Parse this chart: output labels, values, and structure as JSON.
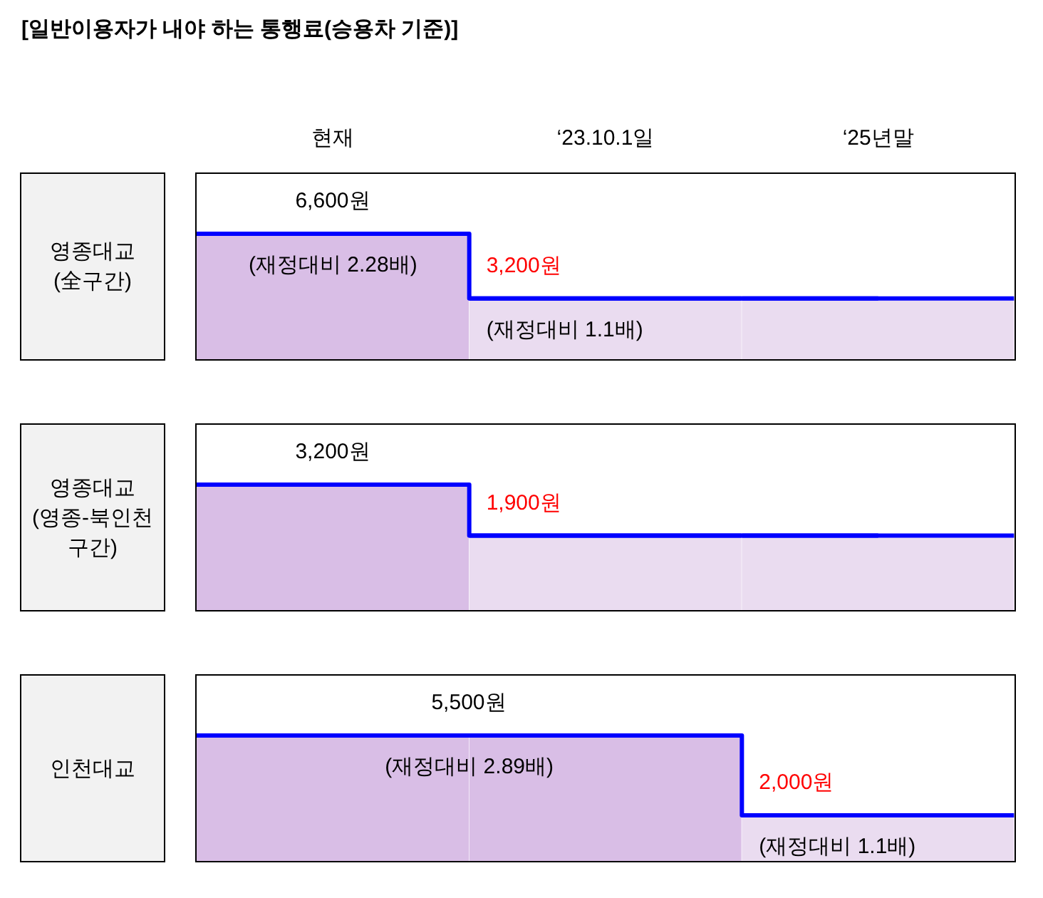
{
  "chart_data": [
    {
      "type": "bar",
      "title": "[일반이용자가 내야 하는 통행료(승용차 기준)]",
      "ylabel": "영종대교 (全구간)",
      "categories": [
        "현재",
        "‘23.10.1일",
        "‘25년말"
      ],
      "series": [
        {
          "colors": [
            "#d9bee6",
            "#eadcf0",
            "#eadcf0"
          ],
          "values": [
            6600,
            3200,
            3200
          ],
          "value_labels": [
            "6,600원",
            "3,200원",
            null
          ]
        },
        {
          "type": "step",
          "color": "#0000ff",
          "values": [
            6600,
            3200,
            3200
          ]
        }
      ],
      "annotations": [
        "(재정대비 2.28배)",
        "(재정대비 1.1배)"
      ]
    },
    {
      "type": "bar",
      "ylabel": "영종대교 (영종-북인천 구간)",
      "categories": [
        null,
        null,
        null
      ],
      "series": [
        {
          "colors": [
            "#d9bee6",
            "#eadcf0",
            "#eadcf0"
          ],
          "values": [
            3200,
            1900,
            1900
          ],
          "value_labels": [
            "3,200원",
            "1,900원",
            null
          ]
        },
        {
          "type": "step",
          "color": "#0000ff",
          "values": [
            3200,
            1900,
            1900
          ]
        }
      ]
    },
    {
      "type": "bar",
      "ylabel": "인천대교",
      "categories": [
        null,
        null,
        null
      ],
      "series": [
        {
          "colors": [
            "#d9bee6",
            "#d9bee6",
            "#eadcf0"
          ],
          "values": [
            5500,
            5500,
            2000
          ],
          "value_labels": [
            "5,500원",
            null,
            "2,000원"
          ]
        },
        {
          "type": "step",
          "color": "#0000ff",
          "values": [
            5500,
            5500,
            2000
          ]
        }
      ],
      "annotations": [
        "(재정대비 2.89배)",
        "(재정대비 1.1배)"
      ]
    }
  ]
}
